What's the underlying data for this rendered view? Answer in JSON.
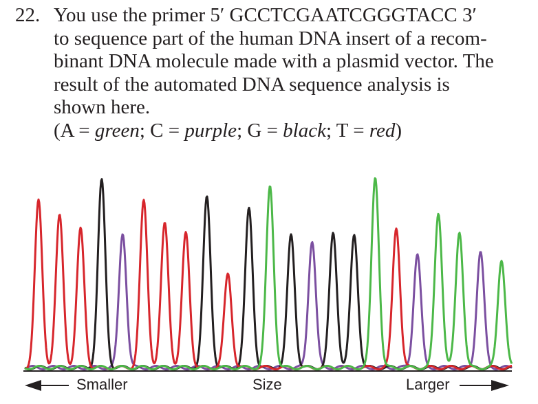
{
  "question": {
    "number": "22.",
    "lines": [
      "You use the primer 5′ GCCTCGAATCGGGTACC 3′",
      "to sequence part of the human DNA insert of a recom-",
      "binant DNA molecule made with a plasmid vector. The",
      "result of the automated DNA sequence analysis is",
      "shown here."
    ],
    "key": {
      "open": "(",
      "a_prefix": "A = ",
      "a_color": "green",
      "c_prefix": "; C = ",
      "c_color": "purple",
      "g_prefix": "; G = ",
      "g_color": "black",
      "t_prefix": "; T = ",
      "t_color": "red",
      "close": ")"
    }
  },
  "chart_data": {
    "type": "line",
    "xlabel": "Size",
    "x_left_label": "Smaller",
    "x_right_label": "Larger",
    "colors": {
      "A": "#4cb848",
      "C": "#7b4fa0",
      "G": "#231f20",
      "T": "#d7262c"
    },
    "base_calls": [
      "T",
      "T",
      "T",
      "G",
      "C",
      "T",
      "T",
      "T",
      "G",
      "T",
      "G",
      "A",
      "G",
      "C",
      "G",
      "G",
      "A",
      "T",
      "C",
      "A",
      "A",
      "C",
      "A"
    ],
    "peaks_relative_height": [
      0.89,
      0.81,
      0.74,
      1.0,
      0.72,
      0.89,
      0.77,
      0.72,
      0.91,
      0.5,
      0.85,
      0.97,
      0.71,
      0.68,
      0.72,
      0.71,
      1.02,
      0.75,
      0.61,
      0.83,
      0.73,
      0.62,
      0.58
    ]
  }
}
